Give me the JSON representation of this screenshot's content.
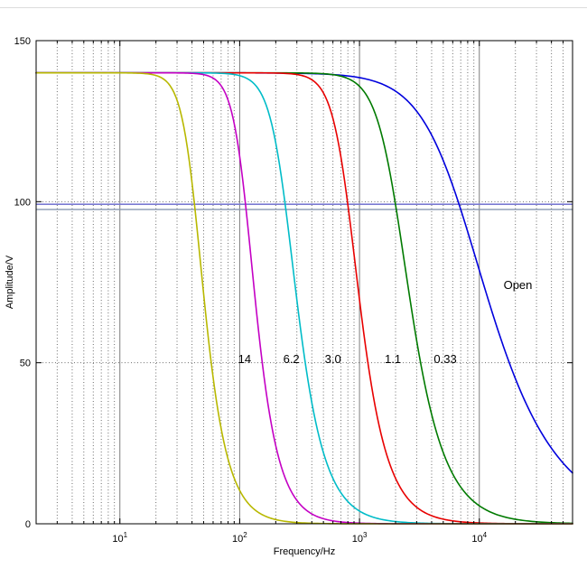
{
  "figure": {
    "background": "#ffffff",
    "border_color": "#000000"
  },
  "chart_data": {
    "type": "line",
    "title": "",
    "xlabel": "Frequency/Hz",
    "ylabel": "Amplitude/V",
    "x_scale": "log",
    "xlim": [
      2,
      60000
    ],
    "ylim": [
      0,
      150
    ],
    "xticks": [
      10,
      100,
      1000,
      10000
    ],
    "yticks": [
      0,
      50,
      100,
      150
    ],
    "grid": true,
    "grid_major_color": "#7d7d7d",
    "grid_minor_color": "#6e6e6e",
    "flat_amplitude": 140,
    "series": [
      {
        "name": "14",
        "color": "#b8b800",
        "a0": 140,
        "fc": 42,
        "order": 3,
        "f_at_50V": 58
      },
      {
        "name": "6.2",
        "color": "#c400c4",
        "a0": 140,
        "fc": 112,
        "order": 3,
        "f_at_50V": 154
      },
      {
        "name": "3.0",
        "color": "#00bcc8",
        "a0": 140,
        "fc": 240,
        "order": 2.5,
        "f_at_50V": 353
      },
      {
        "name": "1.1",
        "color": "#e80000",
        "a0": 140,
        "fc": 800,
        "order": 2.5,
        "f_at_50V": 1175
      },
      {
        "name": "0.33",
        "color": "#007a00",
        "a0": 140,
        "fc": 2000,
        "order": 2,
        "f_at_50V": 3230
      },
      {
        "name": "Open",
        "color": "#0000dd",
        "a0": 140,
        "fc": 6800,
        "order": 1,
        "f_at_50V": 17800
      }
    ],
    "annotations": [
      {
        "text": "14",
        "f": 110,
        "a": 51
      },
      {
        "text": "6.2",
        "f": 270,
        "a": 51
      },
      {
        "text": "3.0",
        "f": 600,
        "a": 51
      },
      {
        "text": "1.1",
        "f": 1900,
        "a": 51
      },
      {
        "text": "0.33",
        "f": 5200,
        "a": 51
      },
      {
        "text": "Open",
        "f": 21000,
        "a": 74
      }
    ],
    "reference_lines": [
      {
        "a": 99.2,
        "color": "#7a7ad2",
        "width": 1.6
      },
      {
        "a": 97.6,
        "color": "#8898b0",
        "width": 1.4
      }
    ],
    "legend": "none"
  }
}
